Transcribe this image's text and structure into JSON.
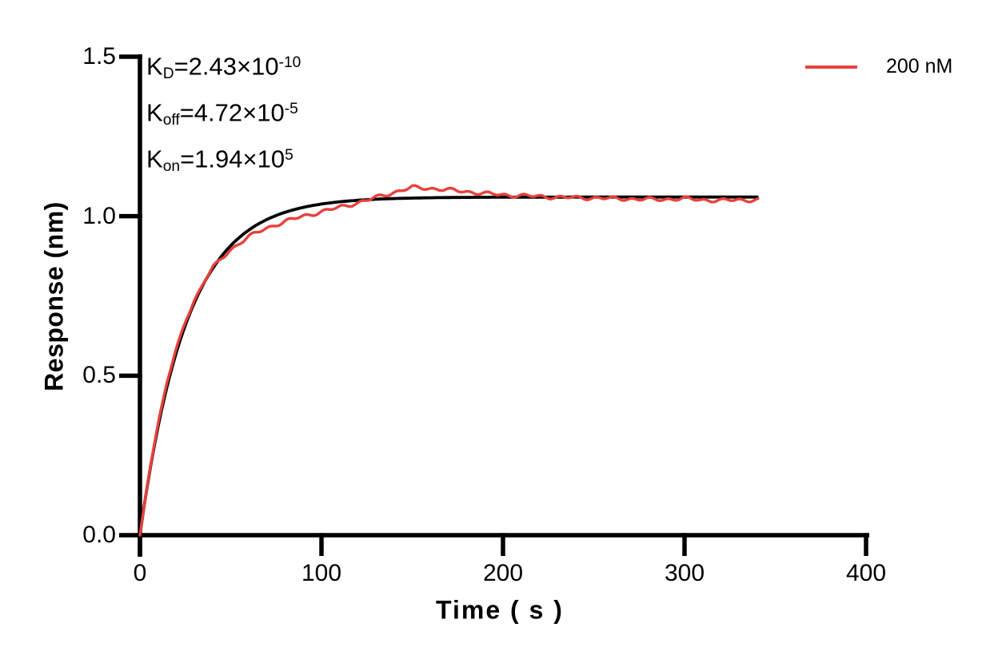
{
  "chart_data": {
    "type": "line",
    "title": "",
    "xlabel": "Time ( s )",
    "ylabel": "Response (nm)",
    "xlim": [
      0,
      400
    ],
    "ylim": [
      0,
      1.5
    ],
    "grid": false,
    "axis_color": "#000000",
    "background": "#FFFFFF",
    "xticks": {
      "values": [
        0,
        100,
        200,
        300,
        400
      ],
      "labels": [
        "0",
        "100",
        "200",
        "300",
        "400"
      ]
    },
    "yticks": {
      "values": [
        0,
        0.5,
        1.0,
        1.5
      ],
      "labels": [
        "0.0",
        "0.5",
        "1.0",
        "1.5"
      ]
    },
    "legend": {
      "position": "top-right",
      "entries": [
        {
          "label": "200 nM",
          "color": "#E8413D"
        }
      ]
    },
    "annotations": {
      "lines": [
        {
          "base": "K",
          "sub": "D",
          "value": "=2.43×10",
          "sup": "-10"
        },
        {
          "base": "K",
          "sub": "off",
          "value": "=4.72×10",
          "sup": "-5"
        },
        {
          "base": "K",
          "sub": "on",
          "value": "=1.94×10",
          "sup": "5"
        }
      ]
    },
    "kinetics": {
      "KD": "2.43e-10",
      "Koff": "4.72e-5",
      "Kon": "1.94e5"
    },
    "series": [
      {
        "name": "fit",
        "role": "fitted-curve",
        "color": "#000000",
        "stroke_width": 3.8,
        "model": {
          "type": "exponential_association",
          "rmax": 1.06,
          "kobs": 0.0388,
          "t_start": 0,
          "t_end": 341,
          "step": 2
        }
      },
      {
        "name": "200 nM",
        "role": "measured-trace",
        "color": "#E8413D",
        "stroke_width": 3.4,
        "points": [
          [
            0,
            0
          ],
          [
            5,
            0.192
          ],
          [
            10,
            0.352
          ],
          [
            15,
            0.482
          ],
          [
            20,
            0.585
          ],
          [
            25,
            0.669
          ],
          [
            30,
            0.737
          ],
          [
            35,
            0.792
          ],
          [
            40,
            0.838
          ],
          [
            45,
            0.867
          ],
          [
            50,
            0.895
          ],
          [
            55,
            0.917
          ],
          [
            60,
            0.936
          ],
          [
            68,
            0.958
          ],
          [
            75,
            0.974
          ],
          [
            82,
            0.987
          ],
          [
            90,
            1.0
          ],
          [
            100,
            1.014
          ],
          [
            110,
            1.028
          ],
          [
            120,
            1.042
          ],
          [
            128,
            1.055
          ],
          [
            135,
            1.067
          ],
          [
            142,
            1.078
          ],
          [
            150,
            1.09
          ],
          [
            158,
            1.088
          ],
          [
            165,
            1.085
          ],
          [
            172,
            1.081
          ],
          [
            180,
            1.077
          ],
          [
            190,
            1.071
          ],
          [
            200,
            1.067
          ],
          [
            210,
            1.0645
          ],
          [
            220,
            1.062
          ],
          [
            230,
            1.0595
          ],
          [
            240,
            1.058
          ],
          [
            250,
            1.0575
          ],
          [
            260,
            1.0555
          ],
          [
            270,
            1.0545
          ],
          [
            280,
            1.0525
          ],
          [
            290,
            1.0535
          ],
          [
            300,
            1.055
          ],
          [
            310,
            1.0515
          ],
          [
            320,
            1.049
          ],
          [
            330,
            1.0515
          ],
          [
            341,
            1.0505
          ]
        ],
        "noise": {
          "a1": 0.0042,
          "f1": 0.63,
          "p1": 0.5,
          "a2": 0.0028,
          "f2": 0.29,
          "p2": 2.0,
          "ramp_t": 45,
          "step": 1.5
        }
      }
    ]
  }
}
